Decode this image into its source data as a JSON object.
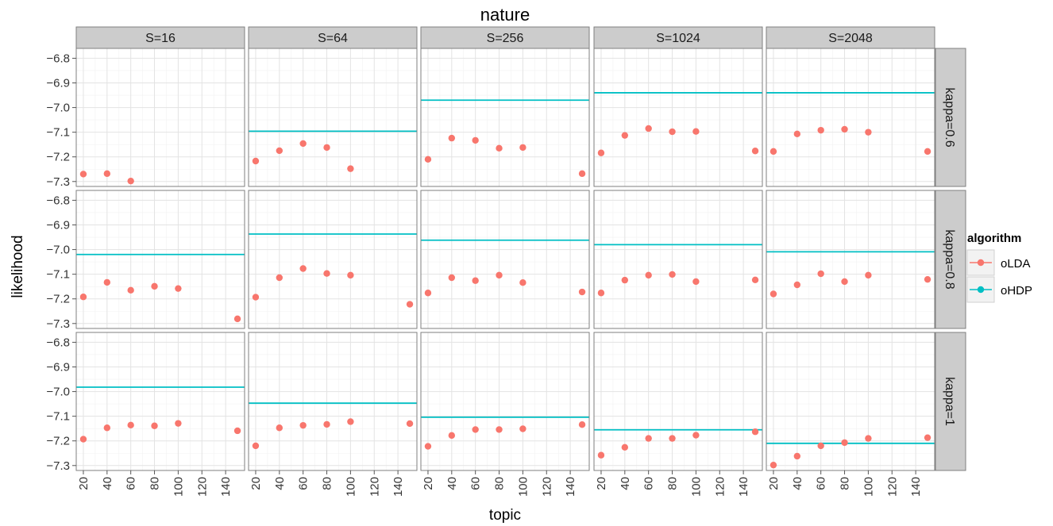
{
  "chart_data": {
    "type": "scatter",
    "title": "nature",
    "xlabel": "topic",
    "ylabel": "likelihood",
    "col_facets": [
      "S=16",
      "S=64",
      "S=256",
      "S=1024",
      "S=2048"
    ],
    "row_facets": [
      "kappa=0.6",
      "kappa=0.8",
      "kappa=1"
    ],
    "x_ticks": [
      20,
      40,
      60,
      80,
      100,
      120,
      140
    ],
    "x_tick_labels": [
      "20",
      "40",
      "60",
      "80",
      "100",
      "120",
      "140"
    ],
    "y_ticks": [
      -6.8,
      -6.9,
      -7.0,
      -7.1,
      -7.2,
      -7.3
    ],
    "y_tick_labels": [
      "−6.8",
      "−6.9",
      "−7.0",
      "−7.1",
      "−7.2",
      "−7.3"
    ],
    "xlim": [
      14,
      156
    ],
    "ylim": [
      -7.32,
      -6.76
    ],
    "grid": true,
    "legend": {
      "title": "algorithm",
      "position": "right",
      "entries": [
        {
          "name": "oLDA",
          "color": "#F8766D"
        },
        {
          "name": "oHDP",
          "color": "#00BFC4"
        }
      ]
    },
    "x": [
      20,
      40,
      60,
      80,
      100,
      150
    ],
    "panels": [
      {
        "row": 0,
        "col": 0,
        "olda": [
          -7.27,
          -7.268,
          -7.298,
          null,
          null,
          null
        ],
        "ohdp": null
      },
      {
        "row": 0,
        "col": 1,
        "olda": [
          -7.217,
          -7.175,
          -7.146,
          -7.162,
          -7.248,
          null
        ],
        "ohdp": -7.096
      },
      {
        "row": 0,
        "col": 2,
        "olda": [
          -7.21,
          -7.124,
          -7.133,
          -7.165,
          -7.162,
          -7.268
        ],
        "ohdp": -6.97
      },
      {
        "row": 0,
        "col": 3,
        "olda": [
          -7.184,
          -7.113,
          -7.085,
          -7.098,
          -7.097,
          -7.176
        ],
        "ohdp": -6.94
      },
      {
        "row": 0,
        "col": 4,
        "olda": [
          -7.178,
          -7.107,
          -7.092,
          -7.088,
          -7.1,
          -7.178
        ],
        "ohdp": -6.94
      },
      {
        "row": 1,
        "col": 0,
        "olda": [
          -7.192,
          -7.133,
          -7.165,
          -7.149,
          -7.158,
          -7.281
        ],
        "ohdp": -7.02
      },
      {
        "row": 1,
        "col": 1,
        "olda": [
          -7.193,
          -7.114,
          -7.077,
          -7.097,
          -7.104,
          -7.222
        ],
        "ohdp": -6.937
      },
      {
        "row": 1,
        "col": 2,
        "olda": [
          -7.176,
          -7.114,
          -7.126,
          -7.104,
          -7.134,
          -7.172
        ],
        "ohdp": -6.962
      },
      {
        "row": 1,
        "col": 3,
        "olda": [
          -7.176,
          -7.124,
          -7.104,
          -7.101,
          -7.13,
          -7.123
        ],
        "ohdp": -6.98
      },
      {
        "row": 1,
        "col": 4,
        "olda": [
          -7.18,
          -7.143,
          -7.098,
          -7.13,
          -7.104,
          -7.121
        ],
        "ohdp": -7.009
      },
      {
        "row": 2,
        "col": 0,
        "olda": [
          -7.193,
          -7.147,
          -7.136,
          -7.139,
          -7.129,
          -7.159
        ],
        "ohdp": -6.982
      },
      {
        "row": 2,
        "col": 1,
        "olda": [
          -7.22,
          -7.147,
          -7.137,
          -7.133,
          -7.122,
          -7.13
        ],
        "ohdp": -7.047
      },
      {
        "row": 2,
        "col": 2,
        "olda": [
          -7.222,
          -7.178,
          -7.154,
          -7.154,
          -7.151,
          -7.134
        ],
        "ohdp": -7.104
      },
      {
        "row": 2,
        "col": 3,
        "olda": [
          -7.258,
          -7.226,
          -7.19,
          -7.19,
          -7.177,
          -7.163
        ],
        "ohdp": -7.155
      },
      {
        "row": 2,
        "col": 4,
        "olda": [
          -7.298,
          -7.262,
          -7.22,
          -7.207,
          -7.19,
          -7.187
        ],
        "ohdp": -7.21
      }
    ]
  }
}
